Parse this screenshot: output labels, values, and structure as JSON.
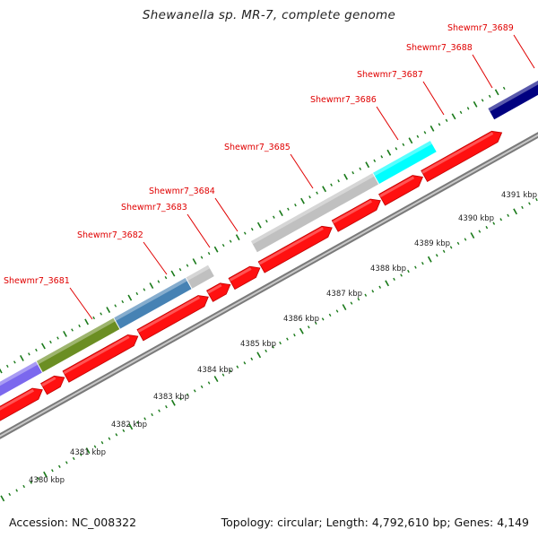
{
  "title": "Shewanella sp. MR-7, complete genome",
  "footer": {
    "accession": "Accession: NC_008322",
    "summary": "Topology: circular; Length: 4,792,610 bp; Genes: 4,149"
  },
  "colors": {
    "gene_label": "#e00000",
    "cds": "#ff1010",
    "backbone": "#888888",
    "tick": "#1a7a1a"
  },
  "scale_labels": [
    "4380 kbp",
    "4381 kbp",
    "4382 kbp",
    "4383 kbp",
    "4384 kbp",
    "4385 kbp",
    "4386 kbp",
    "4387 kbp",
    "4388 kbp",
    "4389 kbp",
    "4390 kbp",
    "4391 kbp"
  ],
  "gene_labels": [
    "Shewmr7_3681",
    "Shewmr7_3682",
    "Shewmr7_3683",
    "Shewmr7_3684",
    "Shewmr7_3685",
    "Shewmr7_3686",
    "Shewmr7_3687",
    "Shewmr7_3688",
    "Shewmr7_3689"
  ],
  "cog_segment_colors": [
    "#7b68ee",
    "#6b8e23",
    "#4682b4",
    "#c0c0c0",
    "#c0c0c0",
    "#00ffff",
    "#000080",
    "#7b68ee"
  ]
}
